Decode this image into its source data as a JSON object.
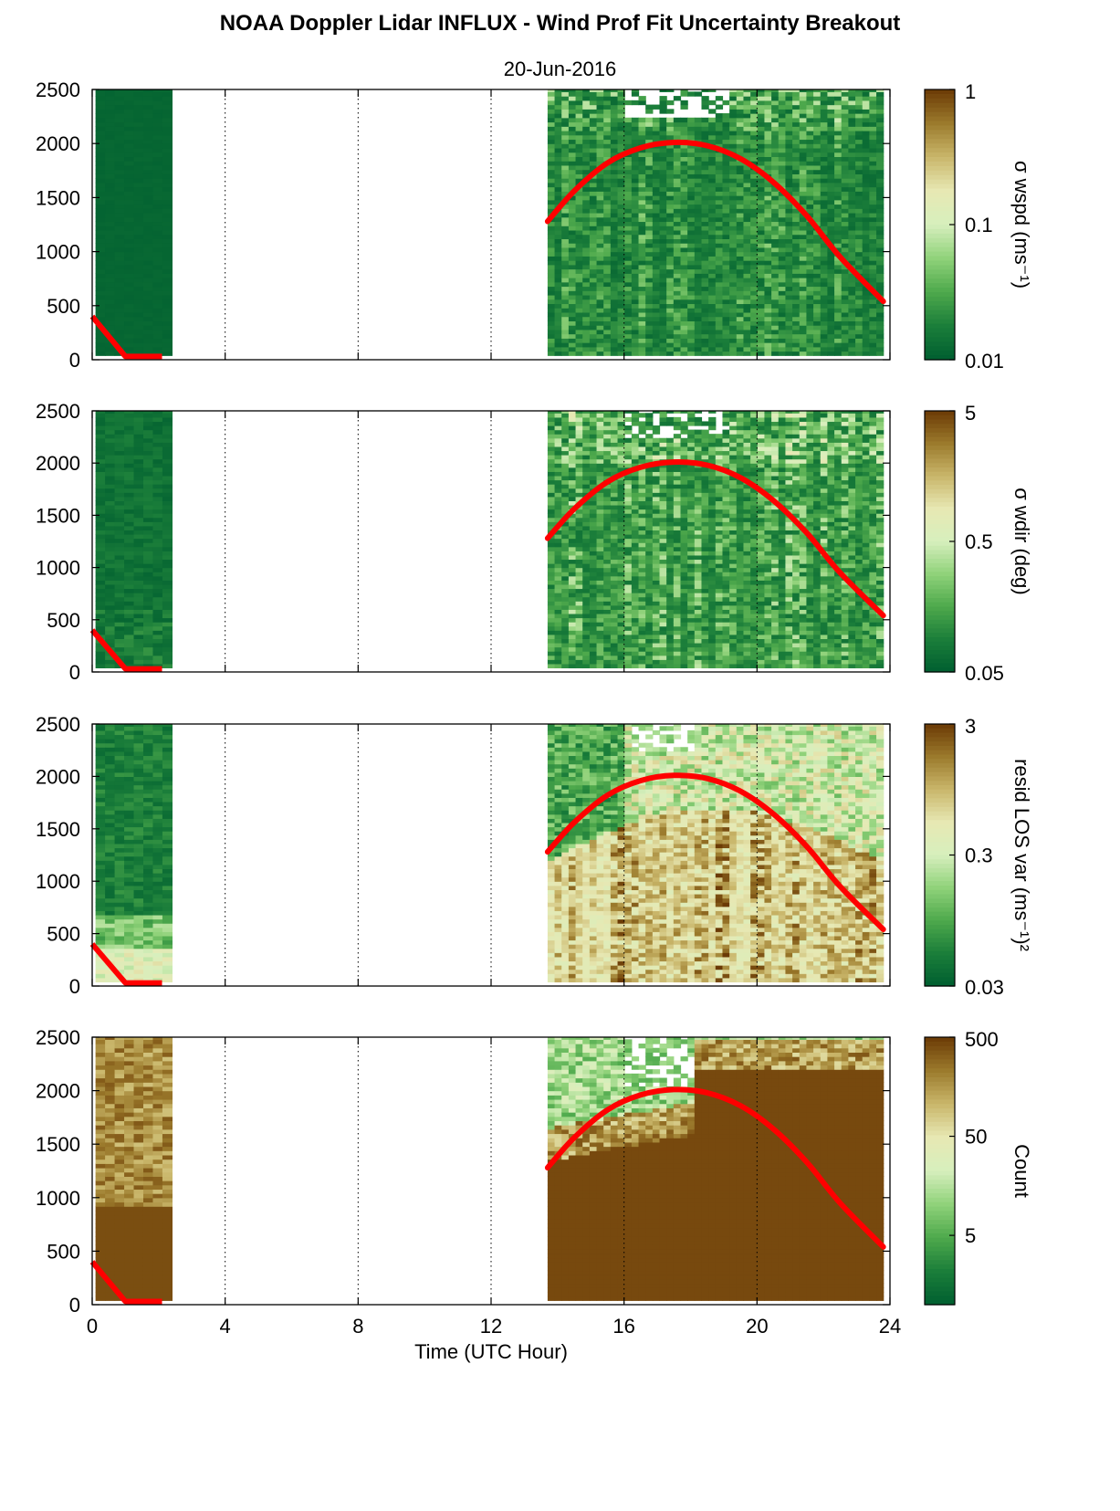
{
  "figure": {
    "title": "NOAA Doppler Lidar INFLUX - Wind Prof Fit Uncertainty Breakout",
    "subtitle": "20-Jun-2016",
    "xlabel": "Time (UTC Hour)"
  },
  "chart_data": [
    {
      "type": "heatmap",
      "panel": 1,
      "xlim": [
        0,
        24
      ],
      "xticks": [
        "0",
        "4",
        "8",
        "12",
        "16",
        "20",
        "24"
      ],
      "ylim": [
        0,
        2500
      ],
      "yticks": [
        "0",
        "500",
        "1000",
        "1500",
        "2000",
        "2500"
      ],
      "grid": "vertical dotted",
      "colorbar": {
        "label": "σ wspd (ms⁻¹)",
        "ticks": [
          "1",
          "0.1",
          "0.01"
        ],
        "scale": "log",
        "range": [
          0.01,
          1
        ]
      },
      "data_blocks": [
        {
          "x_range": [
            0.1,
            2.4
          ],
          "y_range": [
            40,
            2500
          ],
          "level": "low"
        },
        {
          "x_range": [
            13.7,
            23.8
          ],
          "y_range": [
            40,
            2500
          ],
          "level": "low",
          "gaps_near_top": [
            16.0,
            19.2
          ]
        }
      ],
      "overlay_line": {
        "name": "",
        "color": "#ff0000",
        "x": [
          0,
          1.0,
          2.1,
          13.7,
          14.5,
          15.5,
          16.5,
          17.5,
          18.5,
          19.5,
          20.5,
          21.5,
          22.5,
          23.8
        ],
        "y": [
          400,
          30,
          30,
          1280,
          1560,
          1820,
          1960,
          2010,
          1980,
          1860,
          1640,
          1330,
          950,
          540
        ]
      }
    },
    {
      "type": "heatmap",
      "panel": 2,
      "xlim": [
        0,
        24
      ],
      "ylim": [
        0,
        2500
      ],
      "yticks": [
        "0",
        "500",
        "1000",
        "1500",
        "2000",
        "2500"
      ],
      "grid": "vertical dotted",
      "colorbar": {
        "label": "σ wdir (deg)",
        "ticks": [
          "5",
          "0.5",
          "0.05"
        ],
        "scale": "log",
        "range": [
          0.05,
          5
        ]
      },
      "data_blocks": [
        {
          "x_range": [
            0.1,
            2.4
          ],
          "y_range": [
            40,
            2500
          ],
          "level": "low"
        },
        {
          "x_range": [
            13.7,
            23.8
          ],
          "y_range": [
            40,
            2500
          ],
          "level": "low-moderate"
        }
      ],
      "overlay_line": {
        "name": "",
        "color": "#ff0000",
        "x": [
          0,
          1.0,
          2.1,
          13.7,
          14.5,
          15.5,
          16.5,
          17.5,
          18.5,
          19.5,
          20.5,
          21.5,
          22.5,
          23.8
        ],
        "y": [
          400,
          30,
          30,
          1280,
          1560,
          1820,
          1960,
          2010,
          1980,
          1860,
          1640,
          1330,
          950,
          540
        ]
      }
    },
    {
      "type": "heatmap",
      "panel": 3,
      "xlim": [
        0,
        24
      ],
      "ylim": [
        0,
        2500
      ],
      "yticks": [
        "0",
        "500",
        "1000",
        "1500",
        "2000",
        "2500"
      ],
      "grid": "vertical dotted",
      "colorbar": {
        "label": "resid LOS var (ms⁻¹)²",
        "ticks": [
          "3",
          "0.3",
          "0.03"
        ],
        "scale": "log",
        "range": [
          0.03,
          3
        ]
      },
      "data_blocks": [
        {
          "x_range": [
            0.1,
            2.4
          ],
          "y_range": [
            40,
            2500
          ],
          "level": "low, higher near surface"
        },
        {
          "x_range": [
            13.7,
            23.8
          ],
          "y_range": [
            40,
            2500
          ],
          "level": "high below ~1200 m, mixed aloft"
        }
      ],
      "overlay_line": {
        "name": "",
        "color": "#ff0000",
        "x": [
          0,
          1.0,
          2.1,
          13.7,
          14.5,
          15.5,
          16.5,
          17.5,
          18.5,
          19.5,
          20.5,
          21.5,
          22.5,
          23.8
        ],
        "y": [
          400,
          30,
          30,
          1280,
          1560,
          1820,
          1960,
          2010,
          1980,
          1860,
          1640,
          1330,
          950,
          540
        ]
      }
    },
    {
      "type": "heatmap",
      "panel": 4,
      "xlim": [
        0,
        24
      ],
      "xticks": [
        "0",
        "4",
        "8",
        "12",
        "16",
        "20",
        "24"
      ],
      "xlabel": "Time (UTC Hour)",
      "ylim": [
        0,
        2500
      ],
      "yticks": [
        "0",
        "500",
        "1000",
        "1500",
        "2000",
        "2500"
      ],
      "grid": "vertical dotted",
      "colorbar": {
        "label": "Count",
        "ticks": [
          "500",
          "50",
          "5"
        ],
        "scale": "log",
        "range": [
          1,
          500
        ]
      },
      "data_blocks": [
        {
          "x_range": [
            0.1,
            2.4
          ],
          "y_range": [
            40,
            2500
          ],
          "level": "high"
        },
        {
          "x_range": [
            13.7,
            23.8
          ],
          "y_range": [
            40,
            2500
          ],
          "level": "high below ~1800 m, low aloft before 18 UTC"
        }
      ],
      "overlay_line": {
        "name": "",
        "color": "#ff0000",
        "x": [
          0,
          1.0,
          2.1,
          13.7,
          14.5,
          15.5,
          16.5,
          17.5,
          18.5,
          19.5,
          20.5,
          21.5,
          22.5,
          23.8
        ],
        "y": [
          400,
          30,
          30,
          1280,
          1560,
          1820,
          1960,
          2010,
          1980,
          1860,
          1640,
          1330,
          950,
          540
        ]
      }
    }
  ],
  "colors": {
    "colormap": [
      "#005f30",
      "#1b7e3a",
      "#4ea94c",
      "#90d27a",
      "#d7efbd",
      "#e7e8b3",
      "#c9b66a",
      "#9b7a2c",
      "#6b3a05"
    ],
    "overlay_line": "#ff0000"
  }
}
